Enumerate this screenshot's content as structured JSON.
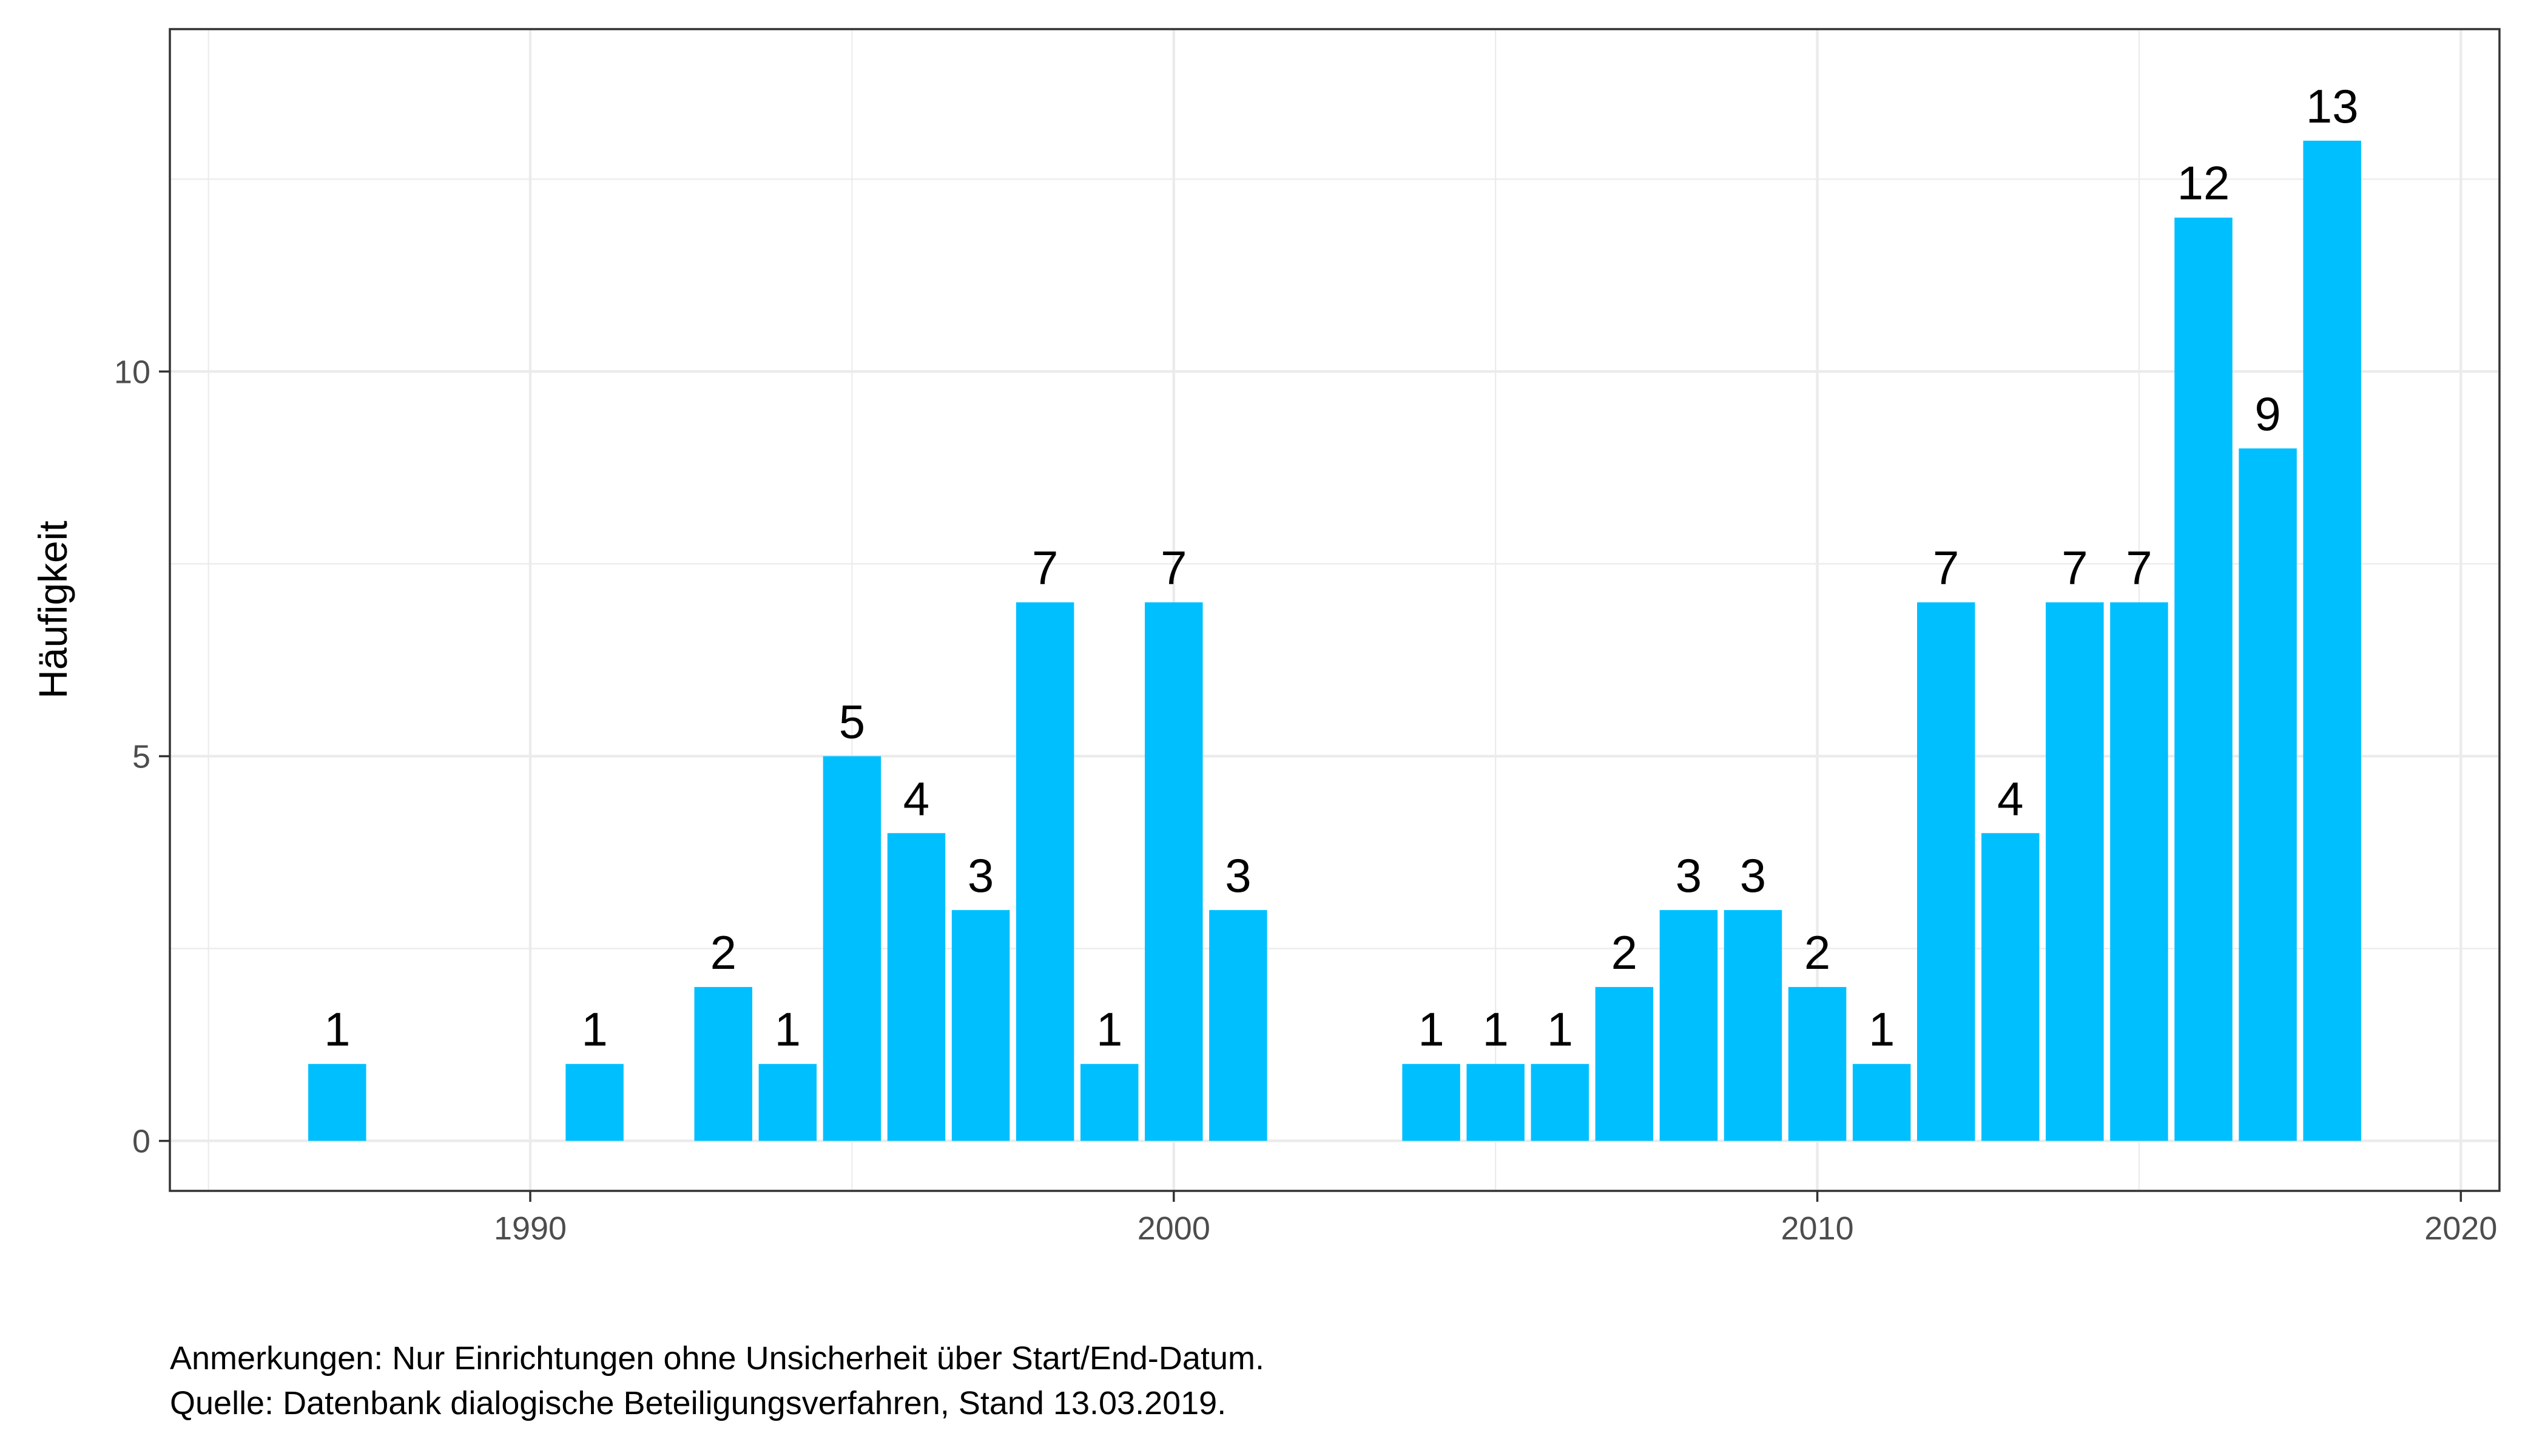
{
  "chart_data": {
    "type": "bar",
    "title": "",
    "xlabel": "",
    "ylabel": "Häufigkeit",
    "xlim": [
      1984.4,
      2020.6
    ],
    "ylim": [
      -0.65,
      14.45
    ],
    "x_ticks": [
      1990,
      2000,
      2010,
      2020
    ],
    "y_ticks": [
      0,
      5,
      10
    ],
    "grid": true,
    "bar_color": "#00BFFF",
    "x": [
      1987,
      1991,
      1993,
      1994,
      1995,
      1996,
      1997,
      1998,
      1999,
      2000,
      2001,
      2004,
      2005,
      2006,
      2007,
      2008,
      2009,
      2010,
      2011,
      2012,
      2013,
      2014,
      2015,
      2016,
      2017,
      2018
    ],
    "values": [
      1,
      1,
      2,
      1,
      5,
      4,
      3,
      7,
      1,
      7,
      3,
      1,
      1,
      1,
      2,
      3,
      3,
      2,
      1,
      7,
      4,
      7,
      7,
      12,
      9,
      13
    ],
    "data_labels": [
      "1",
      "1",
      "2",
      "1",
      "5",
      "4",
      "3",
      "7",
      "1",
      "7",
      "3",
      "1",
      "1",
      "1",
      "2",
      "3",
      "3",
      "2",
      "1",
      "7",
      "4",
      "7",
      "7",
      "12",
      "9",
      "13"
    ]
  },
  "footnotes": {
    "note": "Anmerkungen: Nur Einrichtungen ohne Unsicherheit über Start/End-Datum.",
    "source": "Quelle: Datenbank dialogische Beteiligungsverfahren, Stand 13.03.2019."
  }
}
